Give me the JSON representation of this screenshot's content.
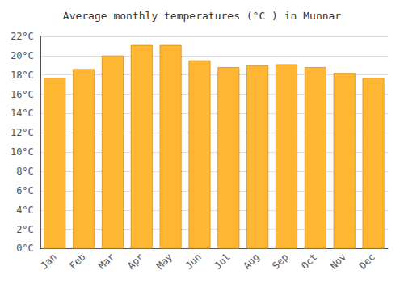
{
  "chart_data": {
    "type": "bar",
    "title": "Average monthly temperatures (°C ) in Munnar",
    "categories": [
      "Jan",
      "Feb",
      "Mar",
      "Apr",
      "May",
      "Jun",
      "Jul",
      "Aug",
      "Sep",
      "Oct",
      "Nov",
      "Dec"
    ],
    "values": [
      17.7,
      18.6,
      20.0,
      21.1,
      21.1,
      19.5,
      18.8,
      19.0,
      19.1,
      18.8,
      18.2,
      17.7
    ],
    "color": "#FFB733",
    "ylim": [
      0,
      22
    ],
    "yticks": [
      {
        "value": 0,
        "label": "0°C"
      },
      {
        "value": 2,
        "label": "2°C"
      },
      {
        "value": 4,
        "label": "4°C"
      },
      {
        "value": 6,
        "label": "6°C"
      },
      {
        "value": 8,
        "label": "8°C"
      },
      {
        "value": 10,
        "label": "10°C"
      },
      {
        "value": 12,
        "label": "12°C"
      },
      {
        "value": 14,
        "label": "14°C"
      },
      {
        "value": 16,
        "label": "16°C"
      },
      {
        "value": 18,
        "label": "18°C"
      },
      {
        "value": 20,
        "label": "20°C"
      },
      {
        "value": 22,
        "label": "22°C"
      }
    ],
    "grid": true
  }
}
